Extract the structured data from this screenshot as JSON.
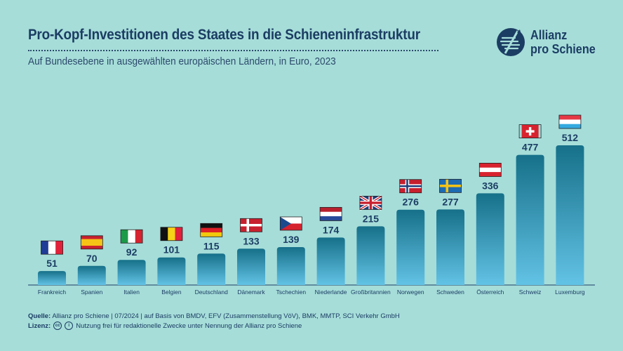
{
  "title": "Pro-Kopf-Investitionen des Staates in die Schieneninfrastruktur",
  "subtitle": "Auf Bundesebene in ausgewählten europäischen Ländern, in Euro, 2023",
  "logo": {
    "line1": "Allianz",
    "line2": "pro Schiene"
  },
  "chart_data": {
    "type": "bar",
    "categories": [
      "Frankreich",
      "Spanien",
      "Italien",
      "Belgien",
      "Deutschland",
      "Dänemark",
      "Tschechien",
      "Niederlande",
      "Großbritannien",
      "Norwegen",
      "Schweden",
      "Österreich",
      "Schweiz",
      "Luxemburg"
    ],
    "values": [
      51,
      70,
      92,
      101,
      115,
      133,
      139,
      174,
      215,
      276,
      277,
      336,
      477,
      512
    ],
    "flags": [
      "france",
      "spain",
      "italy",
      "belgium",
      "germany",
      "denmark",
      "czechia",
      "netherlands",
      "united-kingdom",
      "norway",
      "sweden",
      "austria",
      "switzerland",
      "luxembourg"
    ],
    "xlabel": "",
    "ylabel": "",
    "ylim": [
      0,
      512
    ],
    "grid": false,
    "bar_color_top": "#167089",
    "bar_color_bottom": "#63c3e6"
  },
  "footer": {
    "source_label": "Quelle:",
    "source_text": "Allianz pro Schiene | 07/2024 | auf Basis von BMDV, EFV (Zusammenstellung VöV), BMK, MMTP, SCI Verkehr GmbH",
    "license_label": "Lizenz:",
    "license_text": "Nutzung frei für redaktionelle Zwecke unter Nennung der Allianz pro Schiene"
  },
  "colors": {
    "background": "#a6ddd9",
    "text": "#1b3d63"
  },
  "icons": [
    "allianz-pro-schiene-logo-icon",
    "creative-commons-icon",
    "attribution-icon"
  ]
}
